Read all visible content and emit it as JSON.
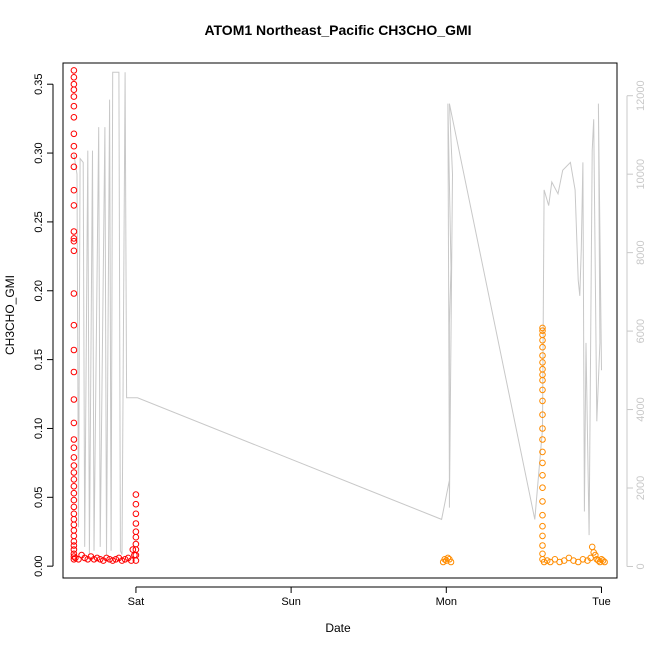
{
  "chart_data": {
    "type": "scatter",
    "title": "ATOM1 Northeast_Pacific CH3CHO_GMI",
    "xlabel": "Date",
    "ylabel": "CH3CHO_GMI",
    "x_ticks": [
      "Sat",
      "Sun",
      "Mon",
      "Tue"
    ],
    "ylim": [
      0,
      0.36
    ],
    "y_ticks": [
      "0.00",
      "0.05",
      "0.10",
      "0.15",
      "0.20",
      "0.25",
      "0.30",
      "0.35"
    ],
    "y2lim": [
      0,
      12600
    ],
    "y2_ticks": [
      "0",
      "2000",
      "4000",
      "6000",
      "8000",
      "10000",
      "12000"
    ],
    "grid": false,
    "colors": {
      "flight1": "#ff0000",
      "flight2": "#ff8c00",
      "altitude": "#c8c8c8",
      "axis": "#000000"
    },
    "series": [
      {
        "color": "#ff0000",
        "x": [
          -0.4,
          -0.4,
          -0.4,
          -0.4,
          -0.4,
          -0.4,
          -0.4,
          -0.4,
          -0.4,
          -0.4,
          -0.4,
          -0.4,
          -0.4,
          -0.4,
          -0.4,
          -0.4,
          -0.4,
          -0.4,
          -0.4,
          -0.4,
          -0.4,
          -0.4,
          -0.4,
          -0.4,
          -0.4,
          -0.4,
          -0.4,
          -0.4,
          -0.4,
          -0.4,
          -0.4,
          -0.4,
          -0.4,
          -0.4,
          -0.4,
          -0.4,
          -0.4,
          -0.4,
          -0.4,
          -0.4,
          -0.4,
          -0.4,
          -0.4,
          -0.4,
          -0.39,
          -0.37,
          -0.35,
          -0.33,
          -0.31,
          -0.29,
          -0.27,
          -0.25,
          -0.23,
          -0.21,
          -0.19,
          -0.17,
          -0.15,
          -0.13,
          -0.11,
          -0.09,
          -0.07,
          -0.05,
          -0.03,
          -0.02,
          -0.01,
          0.0,
          0.0,
          0.0,
          0.0,
          0.0,
          0.0,
          0.0,
          0.0,
          0.0,
          0.0
        ],
        "y": [
          0.36,
          0.355,
          0.35,
          0.346,
          0.341,
          0.334,
          0.326,
          0.314,
          0.305,
          0.298,
          0.29,
          0.273,
          0.262,
          0.243,
          0.238,
          0.236,
          0.229,
          0.198,
          0.175,
          0.157,
          0.141,
          0.121,
          0.104,
          0.092,
          0.086,
          0.079,
          0.073,
          0.068,
          0.063,
          0.058,
          0.053,
          0.048,
          0.043,
          0.038,
          0.034,
          0.03,
          0.026,
          0.022,
          0.018,
          0.015,
          0.012,
          0.009,
          0.007,
          0.005,
          0.006,
          0.005,
          0.008,
          0.006,
          0.005,
          0.007,
          0.005,
          0.006,
          0.005,
          0.004,
          0.006,
          0.005,
          0.004,
          0.005,
          0.006,
          0.004,
          0.005,
          0.006,
          0.004,
          0.012,
          0.008,
          0.052,
          0.045,
          0.038,
          0.031,
          0.025,
          0.021,
          0.016,
          0.012,
          0.008,
          0.004
        ]
      },
      {
        "color": "#ff8c00",
        "x": [
          1.98,
          1.99,
          2.0,
          2.01,
          2.02,
          2.03,
          2.62,
          2.62,
          2.62,
          2.62,
          2.62,
          2.62,
          2.62,
          2.62,
          2.62,
          2.62,
          2.62,
          2.62,
          2.62,
          2.62,
          2.62,
          2.62,
          2.62,
          2.62,
          2.62,
          2.62,
          2.62,
          2.62,
          2.62,
          2.62,
          2.62,
          2.62,
          2.63,
          2.65,
          2.67,
          2.7,
          2.73,
          2.76,
          2.79,
          2.82,
          2.85,
          2.88,
          2.91,
          2.93,
          2.94,
          2.95,
          2.96,
          2.97,
          2.98,
          2.99,
          3.0,
          3.01,
          3.02
        ],
        "y": [
          0.003,
          0.005,
          0.004,
          0.006,
          0.005,
          0.003,
          0.173,
          0.171,
          0.168,
          0.164,
          0.159,
          0.153,
          0.148,
          0.143,
          0.139,
          0.135,
          0.128,
          0.12,
          0.11,
          0.1,
          0.092,
          0.083,
          0.075,
          0.066,
          0.057,
          0.047,
          0.037,
          0.029,
          0.022,
          0.015,
          0.009,
          0.005,
          0.003,
          0.004,
          0.003,
          0.005,
          0.003,
          0.004,
          0.006,
          0.004,
          0.003,
          0.005,
          0.004,
          0.006,
          0.014,
          0.01,
          0.008,
          0.005,
          0.004,
          0.003,
          0.005,
          0.004,
          0.003
        ]
      }
    ],
    "altitude_series": {
      "color": "#c8c8c8",
      "x": [
        -0.4,
        -0.38,
        -0.37,
        -0.36,
        -0.34,
        -0.33,
        -0.31,
        -0.3,
        -0.28,
        -0.27,
        -0.24,
        -0.23,
        -0.2,
        -0.19,
        -0.17,
        -0.16,
        -0.15,
        -0.14,
        -0.12,
        -0.11,
        -0.1,
        -0.09,
        -0.07,
        -0.06,
        -0.05,
        -0.05,
        -0.02,
        -0.01,
        0.0,
        0.01,
        1.97,
        2.02,
        2.01,
        2.03,
        2.02,
        2.02,
        2.04,
        2.02,
        2.57,
        2.62,
        2.63,
        2.66,
        2.68,
        2.72,
        2.75,
        2.8,
        2.83,
        2.85,
        2.86,
        2.87,
        2.88,
        2.89,
        2.9,
        2.92,
        2.94,
        2.95,
        2.97,
        2.99,
        2.98,
        3.0
      ],
      "y": [
        10500,
        10000,
        1000,
        10400,
        10300,
        500,
        10600,
        300,
        10600,
        400,
        11200,
        500,
        11200,
        300,
        11900,
        400,
        12600,
        12600,
        12600,
        12600,
        400,
        300,
        12600,
        4300,
        4300,
        4300,
        4300,
        4300,
        4300,
        4300,
        1200,
        2200,
        11800,
        7600,
        6200,
        1500,
        10000,
        11800,
        1200,
        3500,
        9600,
        9200,
        9800,
        9500,
        10100,
        10300,
        9600,
        7300,
        6900,
        8100,
        10300,
        1400,
        5700,
        800,
        10600,
        11400,
        3700,
        5700,
        11800,
        5000
      ]
    }
  }
}
